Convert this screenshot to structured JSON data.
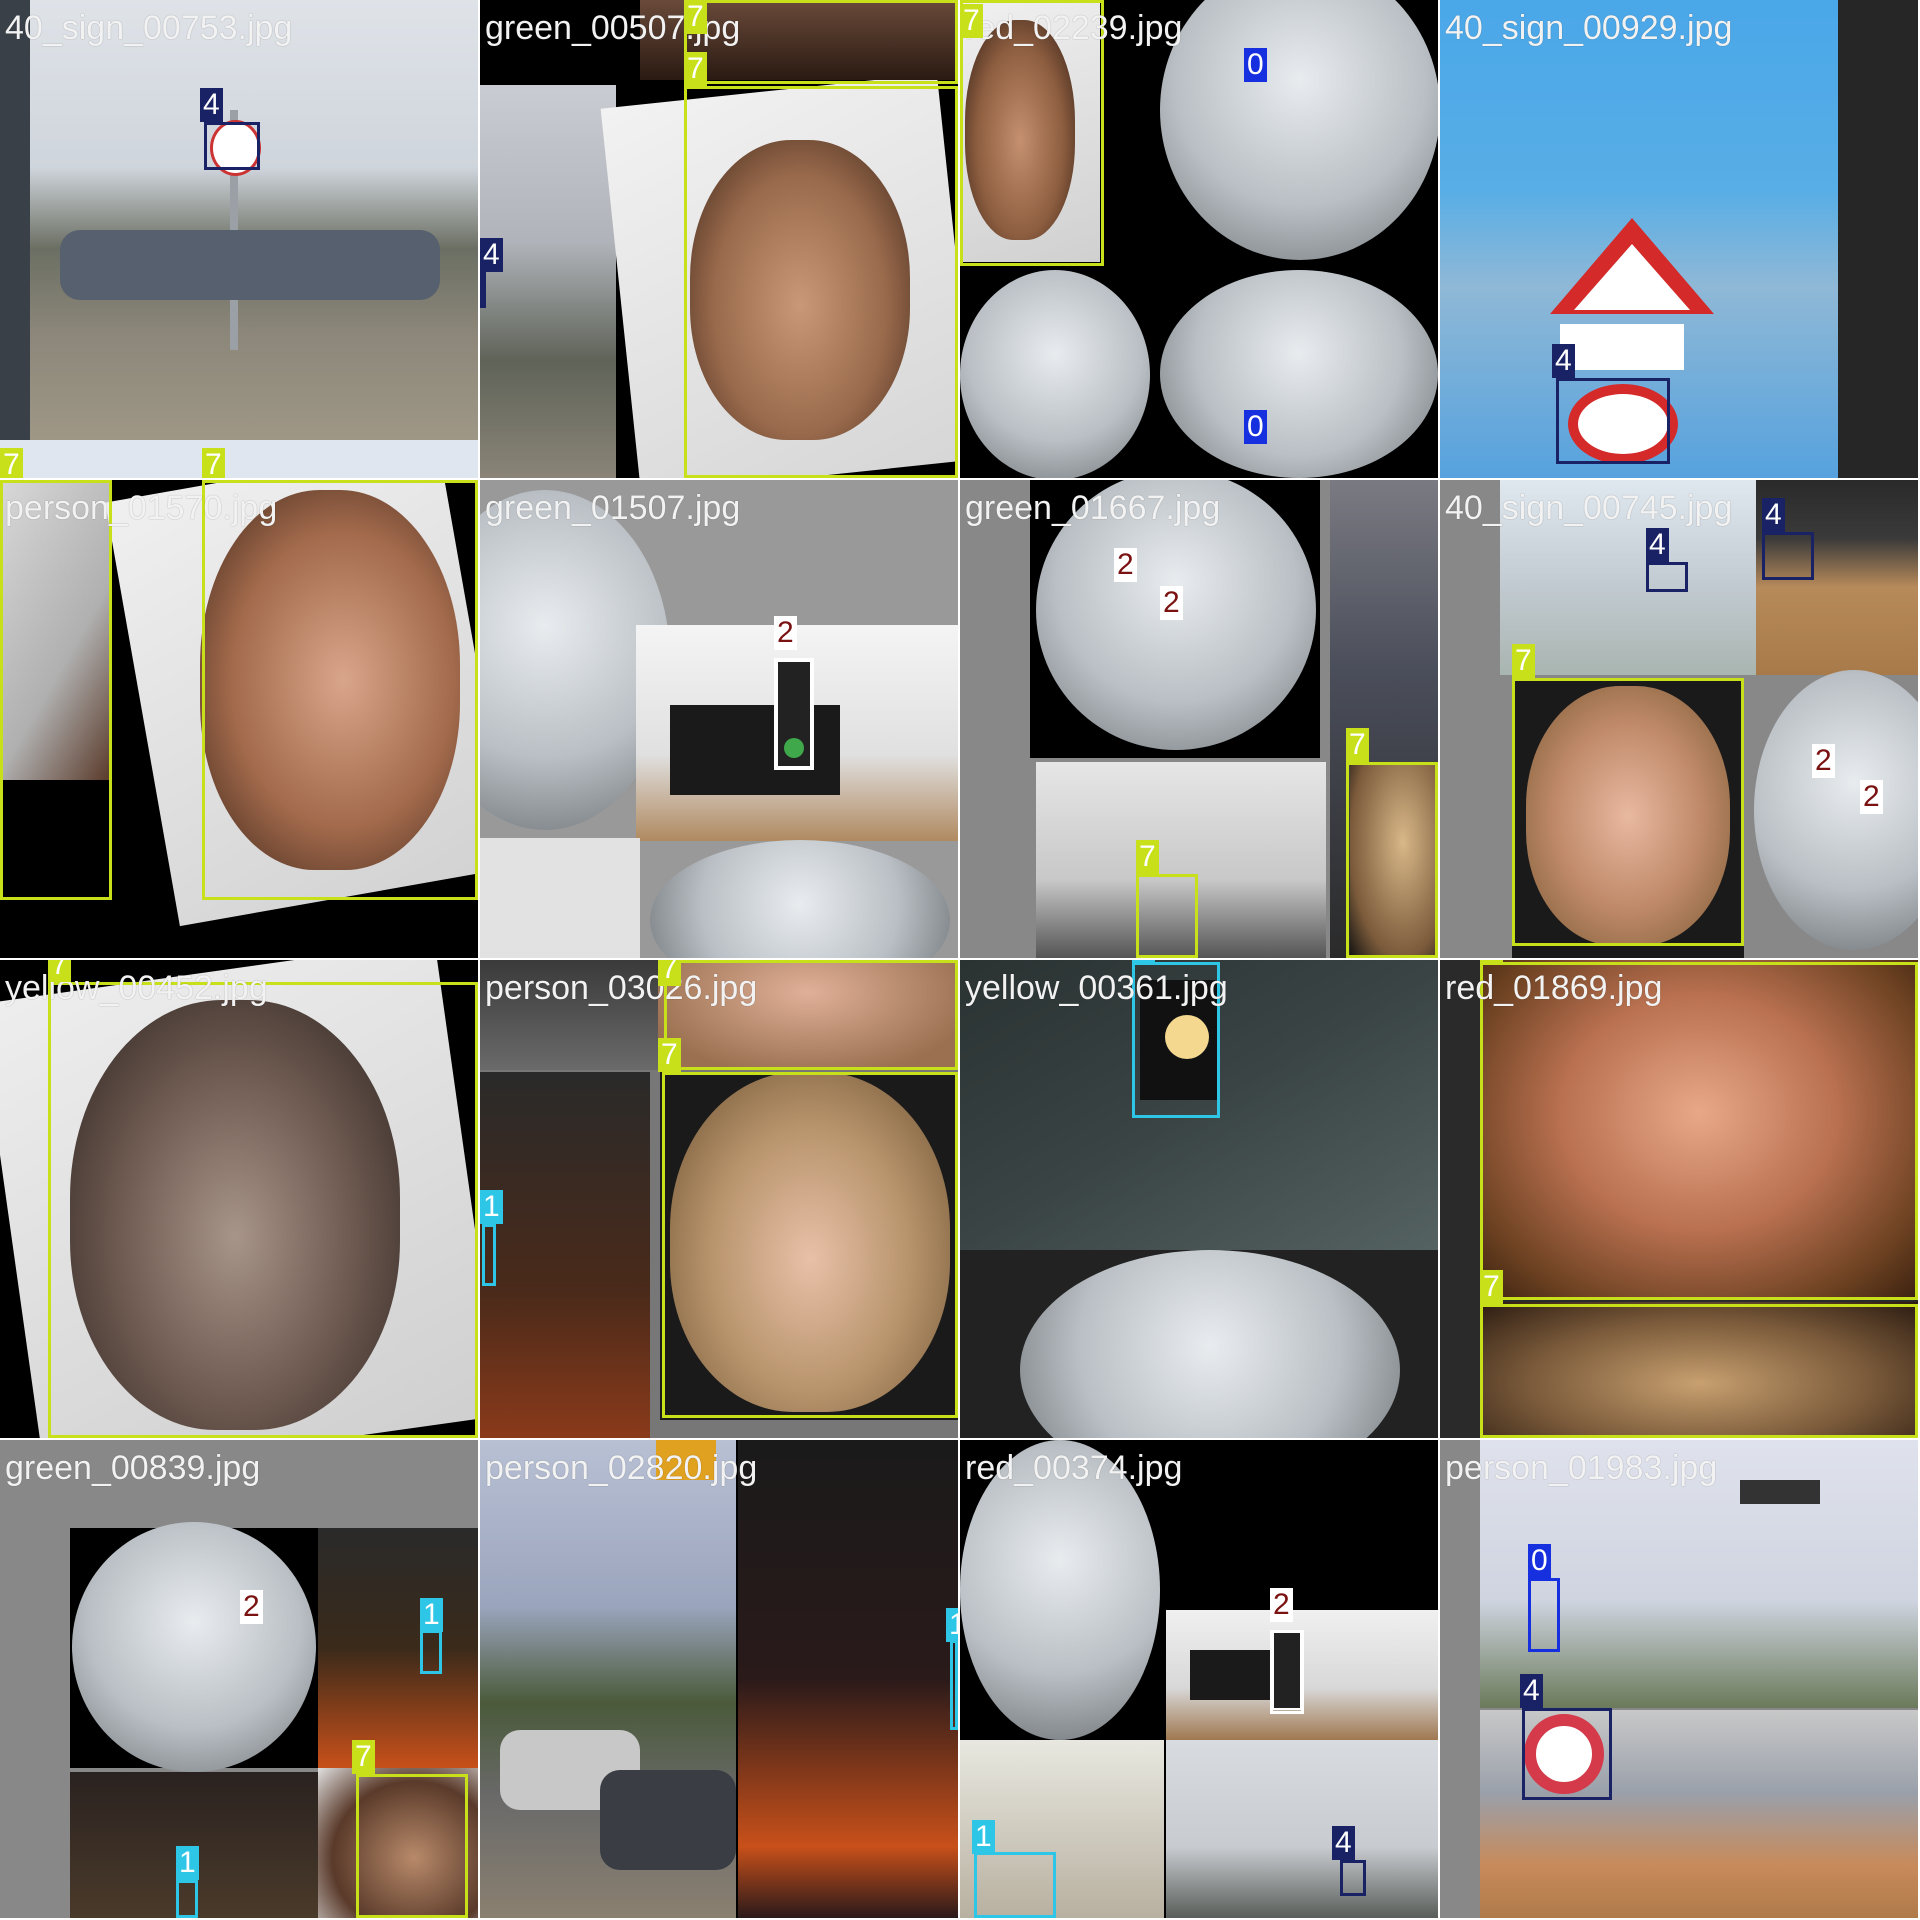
{
  "tiles": [
    {
      "file": "40_sign_00753.jpg"
    },
    {
      "file": "green_00507.jpg"
    },
    {
      "file": "red_02239.jpg"
    },
    {
      "file": "40_sign_00929.jpg"
    },
    {
      "file": "person_01570.jpg"
    },
    {
      "file": "green_01507.jpg"
    },
    {
      "file": "green_01667.jpg"
    },
    {
      "file": "40_sign_00745.jpg"
    },
    {
      "file": "yellow_00452.jpg"
    },
    {
      "file": "person_03026.jpg"
    },
    {
      "file": "yellow_00361.jpg"
    },
    {
      "file": "red_01869.jpg"
    },
    {
      "file": "green_00839.jpg"
    },
    {
      "file": "person_02820.jpg"
    },
    {
      "file": "red_00374.jpg"
    },
    {
      "file": "person_01983.jpg"
    }
  ],
  "classes": {
    "c0": "0",
    "c1": "1",
    "c2": "2",
    "c4": "4",
    "c7": "7"
  },
  "colors": {
    "class0": "#1630e0",
    "class1": "#2ec6e6",
    "class2": "#ffffff",
    "class4": "#1a2266",
    "class7": "#c8e01a"
  }
}
